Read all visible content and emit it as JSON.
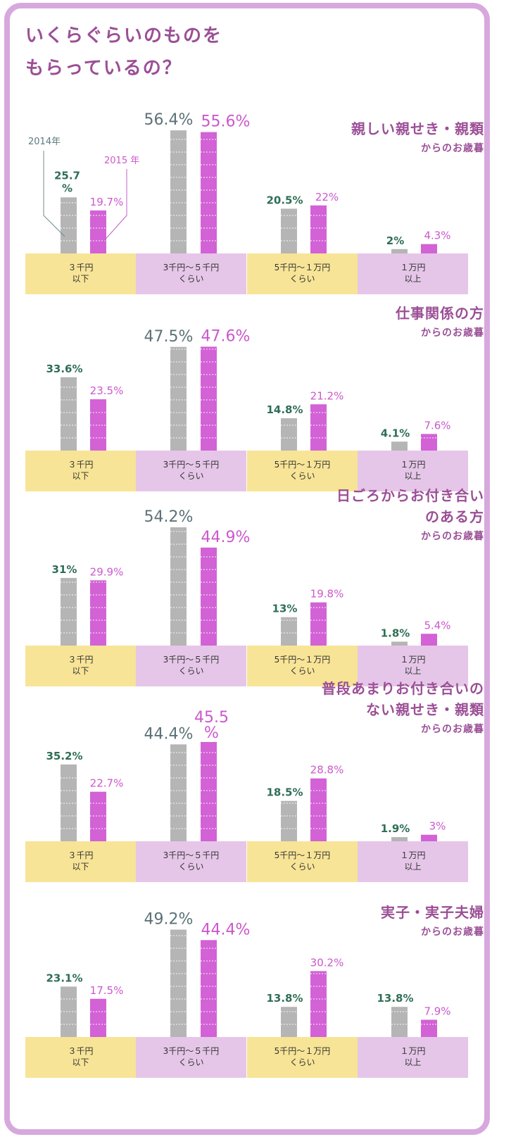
{
  "title_lines": [
    "いくらぐらいのものを",
    "もらっているの？"
  ],
  "legend": {
    "y2014": "2014年",
    "y2015": "2015 年"
  },
  "colors": {
    "y2014": "#b5b5b5",
    "y2015": "#d262d5",
    "cat_yellow": "#f7e496",
    "cat_purple": "#e5c6e8",
    "title": "#9b4f96",
    "frame": "#d7a8dd"
  },
  "chart_data": [
    {
      "type": "bar",
      "title_lines": [
        "親しい親せき・親類"
      ],
      "subtitle": "からのお歳暮",
      "categories": [
        [
          "３千円",
          "以下"
        ],
        [
          "3千円〜５千円",
          "くらい"
        ],
        [
          "5千円〜１万円",
          "くらい"
        ],
        [
          "１万円",
          "以上"
        ]
      ],
      "series": [
        {
          "name": "2014年",
          "values": [
            25.7,
            56.4,
            20.5,
            2
          ]
        },
        {
          "name": "2015 年",
          "values": [
            19.7,
            55.6,
            22,
            4.3
          ]
        }
      ],
      "labels_2014": [
        "25.7%",
        "56.4%",
        "20.5%",
        "2%"
      ],
      "labels_2015": [
        "19.7%",
        "55.6%",
        "22%",
        "4.3%"
      ],
      "ylim": [
        0,
        60
      ]
    },
    {
      "type": "bar",
      "title_lines": [
        "仕事関係の方"
      ],
      "subtitle": "からのお歳暮",
      "categories": [
        [
          "３千円",
          "以下"
        ],
        [
          "3千円〜５千円",
          "くらい"
        ],
        [
          "5千円〜１万円",
          "くらい"
        ],
        [
          "１万円",
          "以上"
        ]
      ],
      "series": [
        {
          "name": "2014年",
          "values": [
            33.6,
            47.5,
            14.8,
            4.1
          ]
        },
        {
          "name": "2015 年",
          "values": [
            23.5,
            47.6,
            21.2,
            7.6
          ]
        }
      ],
      "labels_2014": [
        "33.6%",
        "47.5%",
        "14.8%",
        "4.1%"
      ],
      "labels_2015": [
        "23.5%",
        "47.6%",
        "21.2%",
        "7.6%"
      ],
      "ylim": [
        0,
        60
      ]
    },
    {
      "type": "bar",
      "title_lines": [
        "日ごろからお付き合い",
        "のある方"
      ],
      "subtitle": "からのお歳暮",
      "categories": [
        [
          "３千円",
          "以下"
        ],
        [
          "3千円〜５千円",
          "くらい"
        ],
        [
          "5千円〜１万円",
          "くらい"
        ],
        [
          "１万円",
          "以上"
        ]
      ],
      "series": [
        {
          "name": "2014年",
          "values": [
            31,
            54.2,
            13,
            1.8
          ]
        },
        {
          "name": "2015 年",
          "values": [
            29.9,
            44.9,
            19.8,
            5.4
          ]
        }
      ],
      "labels_2014": [
        "31%",
        "54.2%",
        "13%",
        "1.8%"
      ],
      "labels_2015": [
        "29.9%",
        "44.9%",
        "19.8%",
        "5.4%"
      ],
      "ylim": [
        0,
        60
      ]
    },
    {
      "type": "bar",
      "title_lines": [
        "普段あまりお付き合いの",
        "ない親せき・親類"
      ],
      "subtitle": "からのお歳暮",
      "categories": [
        [
          "３千円",
          "以下"
        ],
        [
          "3千円〜５千円",
          "くらい"
        ],
        [
          "5千円〜１万円",
          "くらい"
        ],
        [
          "１万円",
          "以上"
        ]
      ],
      "series": [
        {
          "name": "2014年",
          "values": [
            35.2,
            44.4,
            18.5,
            1.9
          ]
        },
        {
          "name": "2015 年",
          "values": [
            22.7,
            45.5,
            28.8,
            3
          ]
        }
      ],
      "labels_2014": [
        "35.2%",
        "44.4%",
        "18.5%",
        "1.9%"
      ],
      "labels_2015": [
        "22.7%",
        "45.5%",
        "28.8%",
        "3%"
      ],
      "ylim": [
        0,
        60
      ]
    },
    {
      "type": "bar",
      "title_lines": [
        "実子・実子夫婦"
      ],
      "subtitle": "からのお歳暮",
      "categories": [
        [
          "３千円",
          "以下"
        ],
        [
          "3千円〜５千円",
          "くらい"
        ],
        [
          "5千円〜１万円",
          "くらい"
        ],
        [
          "１万円",
          "以上"
        ]
      ],
      "series": [
        {
          "name": "2014年",
          "values": [
            23.1,
            49.2,
            13.8,
            13.8
          ]
        },
        {
          "name": "2015 年",
          "values": [
            17.5,
            44.4,
            30.2,
            7.9
          ]
        }
      ],
      "labels_2014": [
        "23.1%",
        "49.2%",
        "13.8%",
        "13.8%"
      ],
      "labels_2015": [
        "17.5%",
        "44.4%",
        "30.2%",
        "7.9%"
      ],
      "ylim": [
        0,
        60
      ]
    }
  ]
}
